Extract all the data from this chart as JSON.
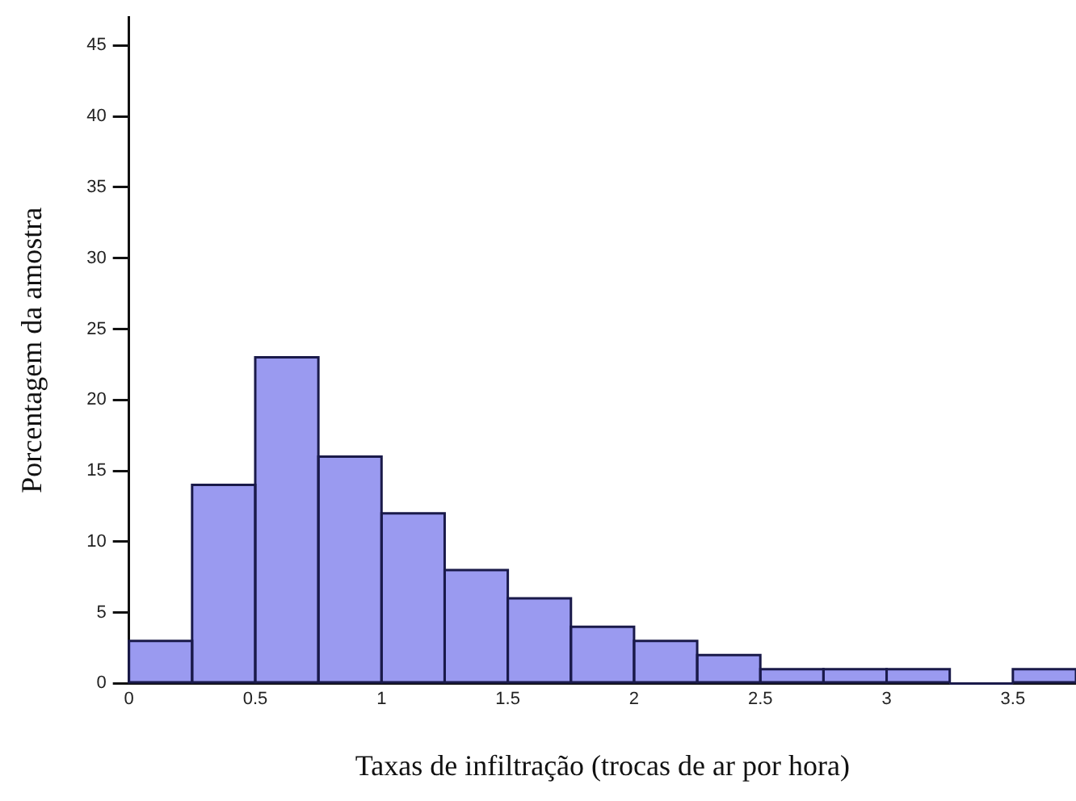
{
  "chart_data": {
    "type": "histogram",
    "xlabel": "Taxas de infiltração (trocas de ar por hora)",
    "ylabel": "Porcentagem da amostra",
    "bins": [
      0,
      0.25,
      0.5,
      0.75,
      1,
      1.25,
      1.5,
      1.75,
      2,
      2.25,
      2.5,
      2.75,
      3,
      3.25,
      3.5,
      3.75
    ],
    "values": [
      3,
      14,
      23,
      16,
      12,
      8,
      6,
      4,
      3,
      2,
      1,
      1,
      1,
      0,
      1
    ],
    "color": "#9a9af0",
    "xlim": [
      0,
      3.75
    ],
    "xticks": [
      0,
      0.5,
      1,
      1.5,
      2,
      2.5,
      3,
      3.5
    ],
    "ylim": [
      0,
      47
    ],
    "yticks": [
      0,
      5,
      10,
      15,
      20,
      25,
      30,
      35,
      40,
      45
    ],
    "grid": false,
    "legend": false
  }
}
